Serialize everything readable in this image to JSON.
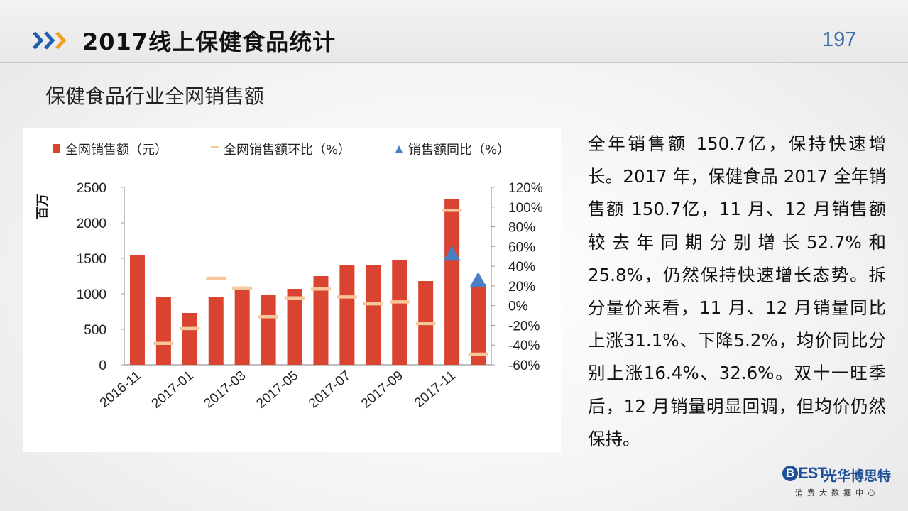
{
  "header": {
    "title": "2017线上保健食品统计",
    "page_number": "197"
  },
  "section_title": "保健食品行业全网销售额",
  "description": "全年销售额 150.7亿，保持快速增长。2017 年，保健食品 2017 全年销售额 150.7亿，11 月、12 月销售额较去年同期分别增长52.7%和25.8%，仍然保持快速增长态势。拆分量价来看，11 月、12 月销量同比上涨31.1%、下降5.2%，均价同比分别上涨16.4%、32.6%。双十一旺季后，12 月销量明显回调，但均价仍然保持。",
  "logo": {
    "badge": "B",
    "mark": "EST",
    "name": "光华博思特",
    "subtitle": "消费大数据中心"
  },
  "colors": {
    "accent_blue": "#1f5fb0",
    "accent_orange": "#f0a020",
    "bar": "#d9432f",
    "dash": "#f6c79a",
    "triangle": "#4a7fc1"
  },
  "chart_data": {
    "type": "bar",
    "title": "",
    "ylabel": "百万",
    "ylim": [
      0,
      2500
    ],
    "y2lim": [
      -60,
      120
    ],
    "yticks": [
      "0",
      "500",
      "1000",
      "1500",
      "2000",
      "2500"
    ],
    "y2ticks": [
      "-60%",
      "-40%",
      "-20%",
      "0%",
      "20%",
      "40%",
      "60%",
      "80%",
      "100%",
      "120%"
    ],
    "xtick_labels": [
      "2016-11",
      "2017-01",
      "2017-03",
      "2017-05",
      "2017-07",
      "2017-09",
      "2017-11"
    ],
    "categories": [
      "2016-11",
      "2016-12",
      "2017-01",
      "2017-02",
      "2017-03",
      "2017-04",
      "2017-05",
      "2017-06",
      "2017-07",
      "2017-08",
      "2017-09",
      "2017-10",
      "2017-11",
      "2017-12"
    ],
    "legend": [
      "全网销售额（元）",
      "全网销售额环比（%）",
      "销售额同比（%）"
    ],
    "legend_position": "top",
    "series": [
      {
        "name": "全网销售额（元）",
        "type": "bar",
        "axis": "left",
        "values": [
          1550,
          950,
          730,
          950,
          1100,
          990,
          1070,
          1250,
          1400,
          1400,
          1470,
          1180,
          2340,
          1140
        ]
      },
      {
        "name": "全网销售额环比（%）",
        "type": "dash",
        "axis": "right",
        "values": [
          null,
          -38,
          -23,
          28,
          18,
          -11,
          8,
          17,
          9,
          2,
          4,
          -18,
          97,
          -49
        ]
      },
      {
        "name": "销售额同比（%）",
        "type": "triangle",
        "axis": "right",
        "values": [
          null,
          null,
          null,
          null,
          null,
          null,
          null,
          null,
          null,
          null,
          null,
          null,
          52.7,
          25.8
        ]
      }
    ]
  }
}
